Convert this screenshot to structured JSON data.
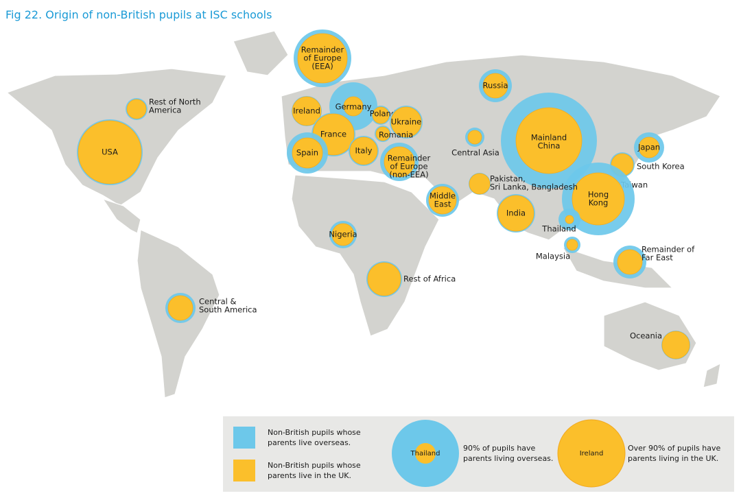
{
  "title": "Fig 22. Origin of non-British pupils at ISC schools",
  "regions": [
    {
      "label": [
        "USA"
      ]
    },
    {
      "label": [
        "Rest of North",
        "America"
      ]
    },
    {
      "label": [
        "Remainder",
        "of Europe",
        "(EEA)"
      ]
    },
    {
      "label": [
        "Ireland"
      ]
    },
    {
      "label": [
        "Germany"
      ]
    },
    {
      "label": [
        "Poland"
      ]
    },
    {
      "label": [
        "Ukraine"
      ]
    },
    {
      "label": [
        "France"
      ]
    },
    {
      "label": [
        "Romania"
      ]
    },
    {
      "label": [
        "Spain"
      ]
    },
    {
      "label": [
        "Italy"
      ]
    },
    {
      "label": [
        "Remainder",
        "of Europe",
        "(non-EEA)"
      ]
    },
    {
      "label": [
        "Russia"
      ]
    },
    {
      "label": [
        "Central Asia"
      ]
    },
    {
      "label": [
        "Mainland",
        "China"
      ]
    },
    {
      "label": [
        "Japan"
      ]
    },
    {
      "label": [
        "South Korea"
      ]
    },
    {
      "label": [
        "Taiwan"
      ]
    },
    {
      "label": [
        "Hong",
        "Kong"
      ]
    },
    {
      "label": [
        "Pakistan,",
        "Sri Lanka, Bangladesh"
      ]
    },
    {
      "label": [
        "Middle",
        "East"
      ]
    },
    {
      "label": [
        "India"
      ]
    },
    {
      "label": [
        "Thailand"
      ]
    },
    {
      "label": [
        "Malaysia"
      ]
    },
    {
      "label": [
        "Remainder of",
        "Far East"
      ]
    },
    {
      "label": [
        "Nigeria"
      ]
    },
    {
      "label": [
        "Rest of Africa"
      ]
    },
    {
      "label": [
        "Central &",
        "South America"
      ]
    },
    {
      "label": [
        "Oceania"
      ]
    }
  ],
  "legend": {
    "overseas": [
      "Non-British pupils whose",
      "parents live overseas."
    ],
    "uk": [
      "Non-British pupils whose",
      "parents live in the UK."
    ],
    "example_overseas": {
      "name": "Thailand",
      "text": [
        "90% of pupils have",
        "parents living overseas."
      ]
    },
    "example_uk": {
      "name": "Ireland",
      "text": [
        "Over 90% of pupils have",
        "parents living in the UK."
      ]
    }
  }
}
